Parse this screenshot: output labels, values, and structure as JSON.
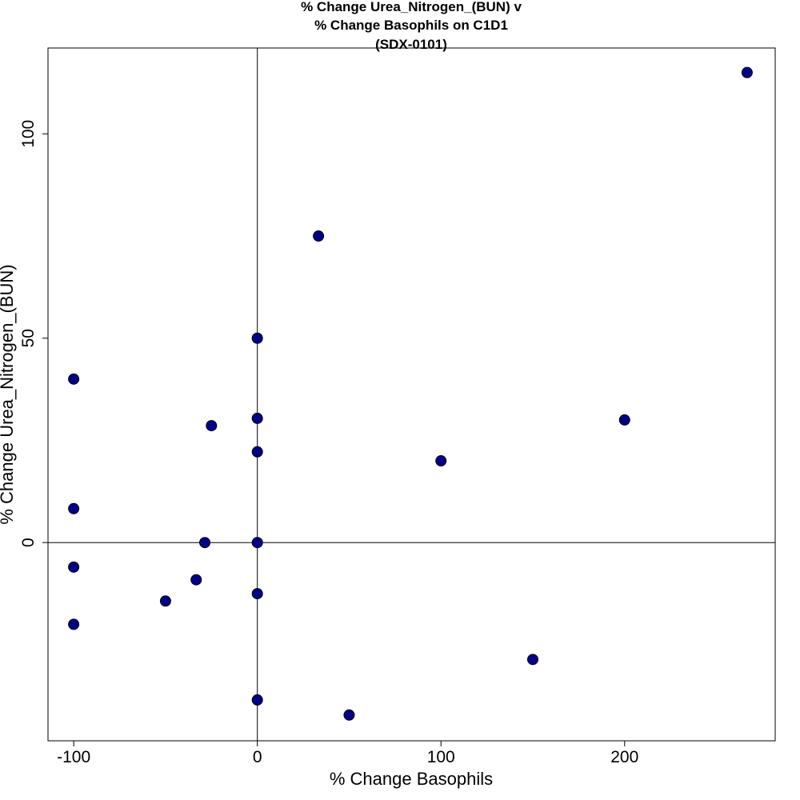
{
  "chart_data": {
    "type": "scatter",
    "title_lines": [
      "% Change Urea_Nitrogen_(BUN) v",
      "% Change Basophils on C1D1",
      "(SDX-0101)"
    ],
    "xlabel": "% Change Basophils",
    "ylabel": "% Change Urea_Nitrogen_(BUN)",
    "xlim": [
      -114,
      282
    ],
    "ylim": [
      -48.5,
      121
    ],
    "x_ticks": [
      {
        "value": -100,
        "label": "-100"
      },
      {
        "value": 0,
        "label": "0"
      },
      {
        "value": 100,
        "label": "100"
      },
      {
        "value": 200,
        "label": "200"
      }
    ],
    "y_ticks": [
      {
        "value": 0,
        "label": "0"
      },
      {
        "value": 50,
        "label": "50"
      },
      {
        "value": 100,
        "label": "100"
      }
    ],
    "reference_lines": {
      "x": 0,
      "y": 0
    },
    "marker_color": "#00008B",
    "grid": false,
    "points": [
      {
        "x": 266.7,
        "y": 115
      },
      {
        "x": 33.3,
        "y": 75
      },
      {
        "x": 0,
        "y": 50
      },
      {
        "x": -100,
        "y": 40
      },
      {
        "x": 0,
        "y": 30.4
      },
      {
        "x": 200,
        "y": 30
      },
      {
        "x": -25,
        "y": 28.6
      },
      {
        "x": 0,
        "y": 22.2
      },
      {
        "x": 100,
        "y": 20
      },
      {
        "x": -100,
        "y": 8.3
      },
      {
        "x": -28.6,
        "y": 0
      },
      {
        "x": 0,
        "y": 0
      },
      {
        "x": -100,
        "y": -6
      },
      {
        "x": -33.3,
        "y": -9.1
      },
      {
        "x": 0,
        "y": -12.5
      },
      {
        "x": -50,
        "y": -14.3
      },
      {
        "x": -100,
        "y": -20
      },
      {
        "x": 150,
        "y": -28.6
      },
      {
        "x": 0,
        "y": -38.5
      },
      {
        "x": 50,
        "y": -42.2
      }
    ]
  }
}
